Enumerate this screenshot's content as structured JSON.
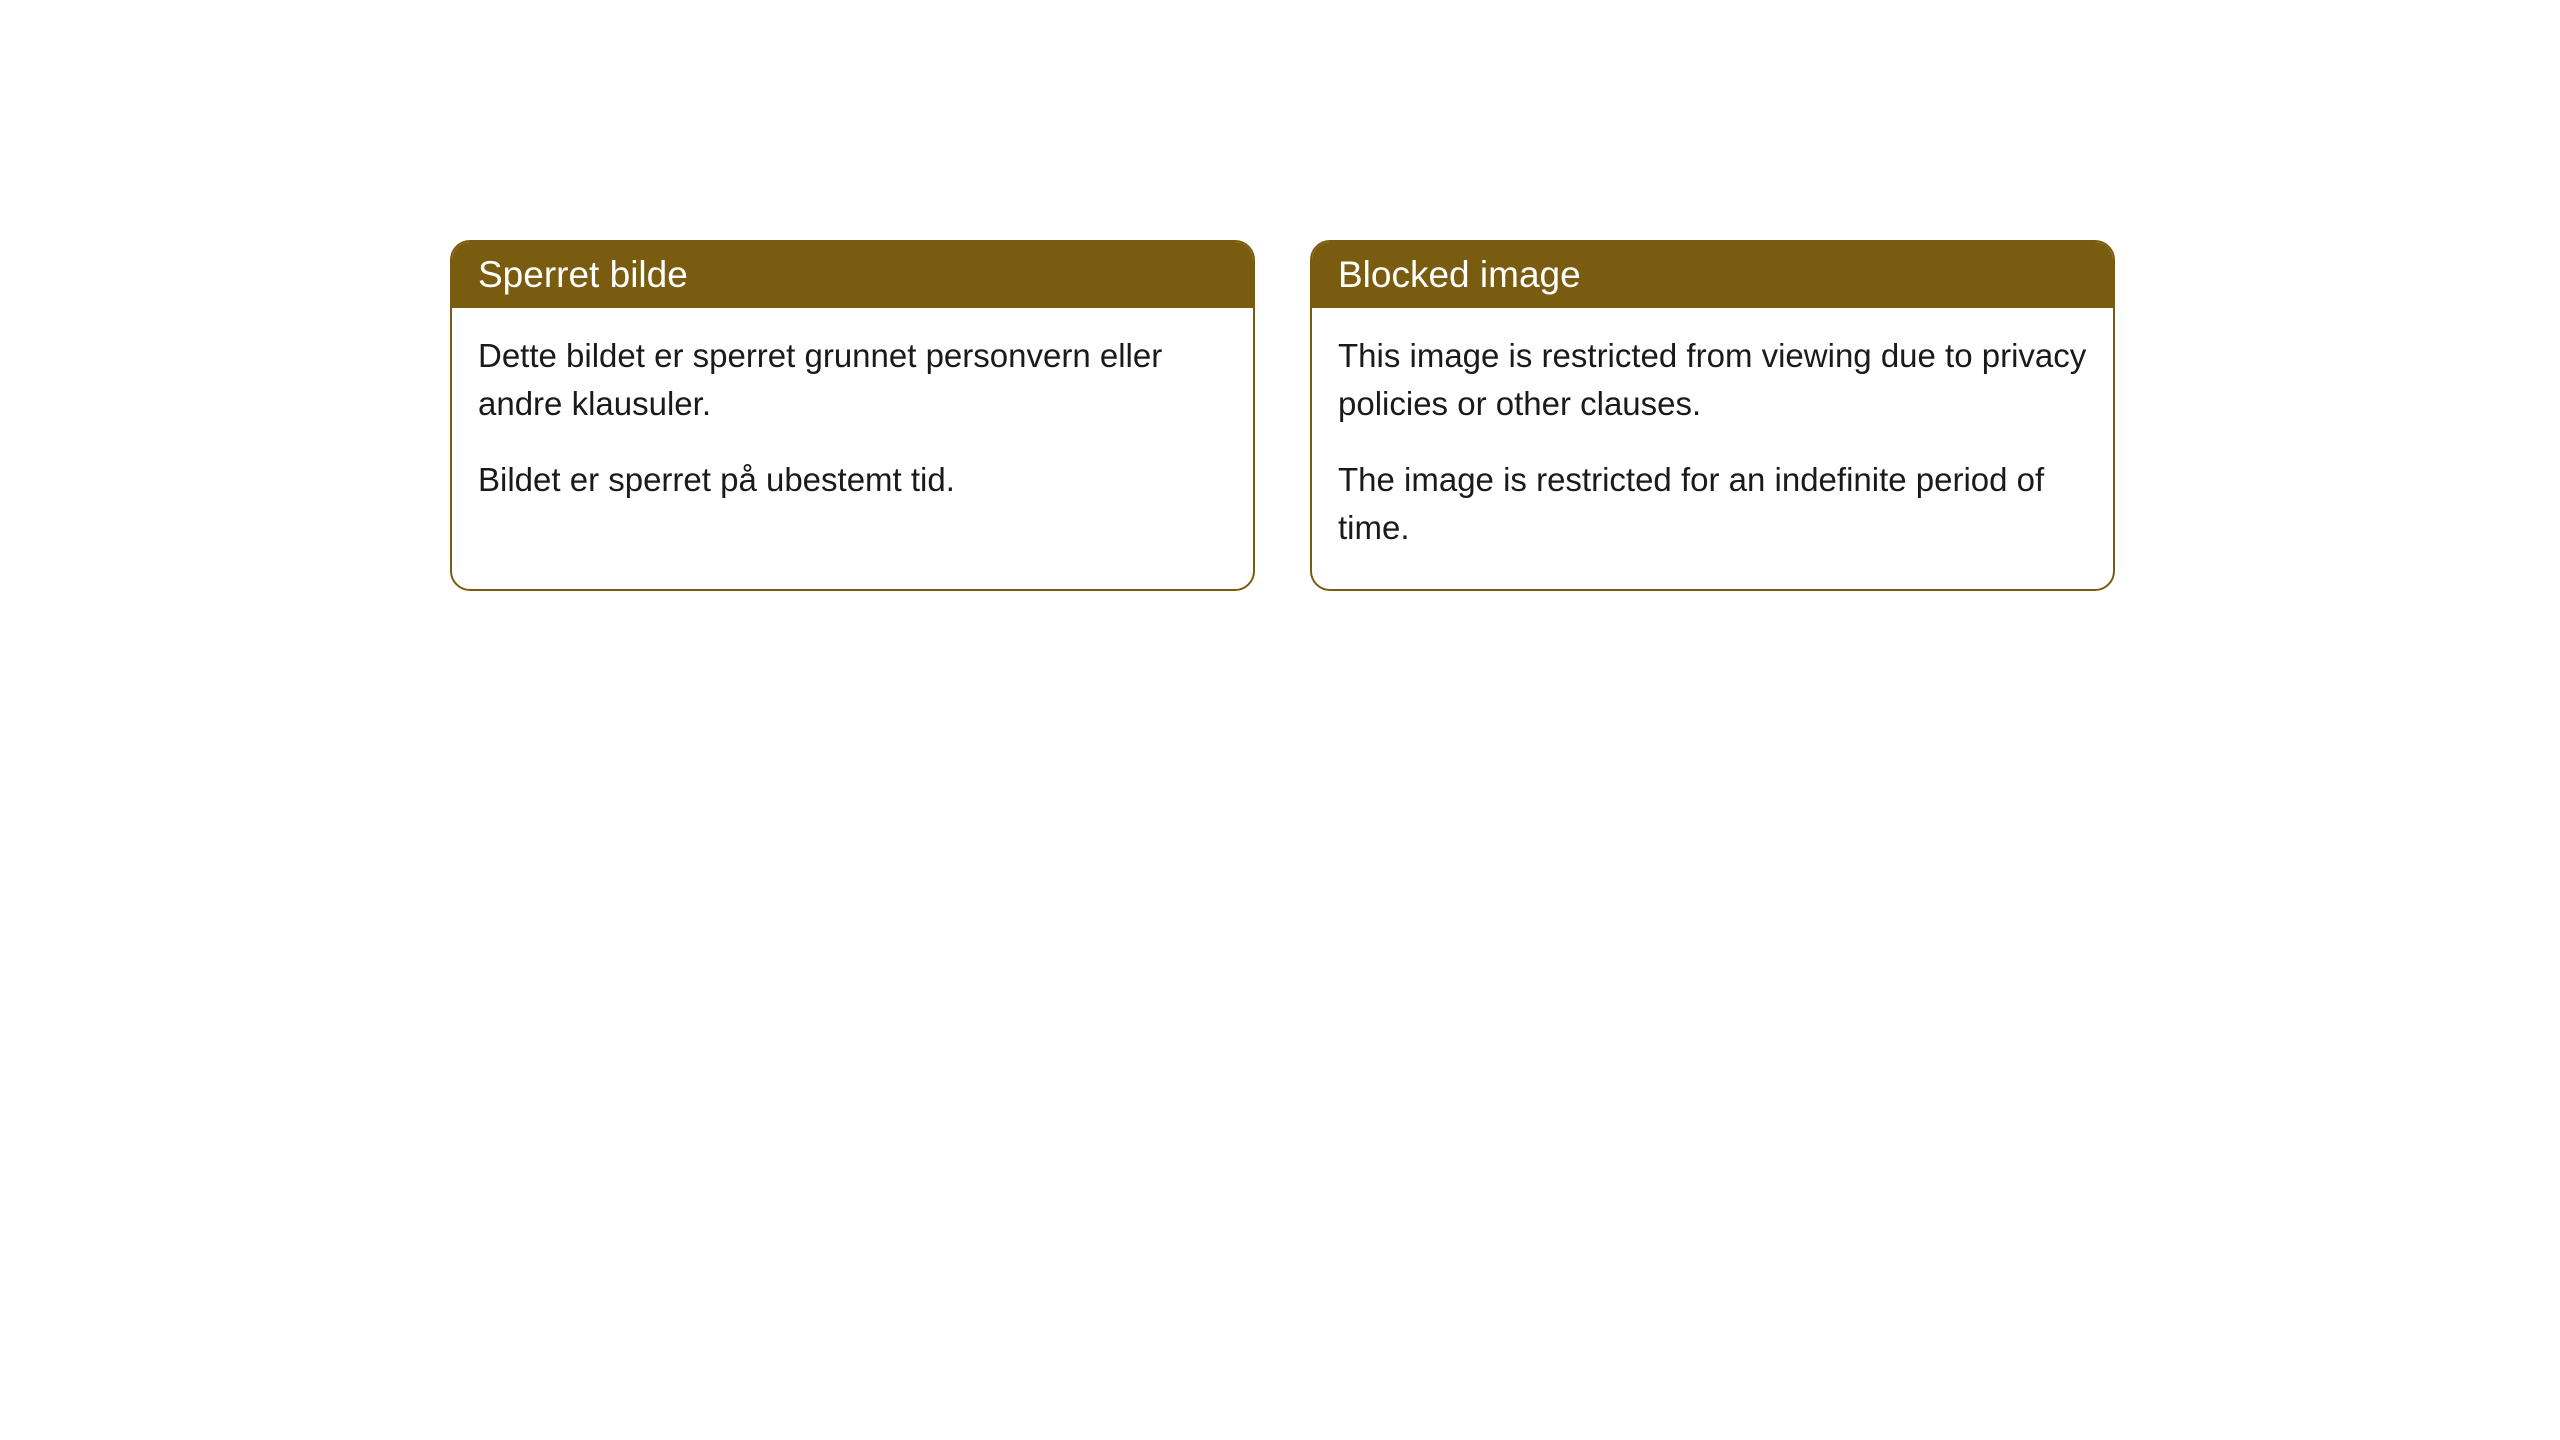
{
  "cards": [
    {
      "title": "Sperret bilde",
      "paragraph1": "Dette bildet er sperret grunnet personvern eller andre klausuler.",
      "paragraph2": "Bildet er sperret på ubestemt tid."
    },
    {
      "title": "Blocked image",
      "paragraph1": "This image is restricted from viewing due to privacy policies or other clauses.",
      "paragraph2": "The image is restricted for an indefinite period of time."
    }
  ],
  "styling": {
    "header_bg_color": "#7a5c10",
    "header_text_color": "#ffffff",
    "border_color": "#7a5c10",
    "body_bg_color": "#ffffff",
    "body_text_color": "#1a1a1a",
    "border_radius": 20,
    "title_fontsize": 37,
    "body_fontsize": 33
  }
}
